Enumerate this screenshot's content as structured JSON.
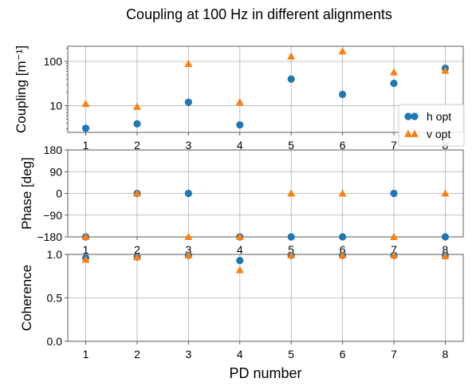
{
  "colors": {
    "h_opt": "#1f77b4",
    "v_opt": "#ff7f0e"
  },
  "chart_data": {
    "type": "scatter",
    "title": "Coupling at 100 Hz in different alignments",
    "xlabel": "PD number",
    "x": [
      1,
      2,
      3,
      4,
      5,
      6,
      7,
      8
    ],
    "x_ticks": [
      "1",
      "2",
      "3",
      "4",
      "5",
      "6",
      "7",
      "8"
    ],
    "grid": true,
    "legend": {
      "placement": "right",
      "entries": [
        "h opt",
        "v opt"
      ]
    },
    "panels": [
      {
        "ylabel": "Coupling [m⁻¹]",
        "yscale": "log",
        "ylim": [
          2.5,
          220
        ],
        "y_ticks": [
          10,
          100
        ],
        "y_tick_labels": [
          "10",
          "100"
        ],
        "series": [
          {
            "name": "h opt",
            "marker": "circle",
            "values": [
              3.1,
              3.9,
              12,
              3.7,
              40,
              18,
              32,
              70
            ]
          },
          {
            "name": "v opt",
            "marker": "triangle",
            "values": [
              11,
              9.5,
              88,
              12,
              130,
              170,
              57,
              62
            ]
          }
        ]
      },
      {
        "ylabel": "Phase [deg]",
        "yscale": "linear",
        "ylim": [
          -180,
          180
        ],
        "y_ticks": [
          -180,
          -90,
          0,
          90,
          180
        ],
        "y_tick_labels": [
          "−180",
          "−90",
          "0",
          "90",
          "180"
        ],
        "series": [
          {
            "name": "h opt",
            "marker": "circle",
            "values": [
              -180,
              0,
              0,
              -180,
              -180,
              -180,
              0,
              -180
            ]
          },
          {
            "name": "v opt",
            "marker": "triangle",
            "values": [
              -180,
              0,
              -180,
              -180,
              0,
              0,
              -180,
              0
            ]
          }
        ]
      },
      {
        "ylabel": "Coherence",
        "yscale": "linear",
        "ylim": [
          0.0,
          1.0
        ],
        "y_ticks": [
          0.0,
          0.5,
          1.0
        ],
        "y_tick_labels": [
          "0.0",
          "0.5",
          "1.0"
        ],
        "series": [
          {
            "name": "h opt",
            "marker": "circle",
            "values": [
              0.96,
              0.97,
              0.99,
              0.93,
              0.99,
              0.99,
              0.99,
              0.99
            ]
          },
          {
            "name": "v opt",
            "marker": "triangle",
            "values": [
              0.94,
              0.97,
              0.99,
              0.82,
              0.99,
              0.99,
              0.99,
              0.98
            ]
          }
        ]
      }
    ]
  }
}
